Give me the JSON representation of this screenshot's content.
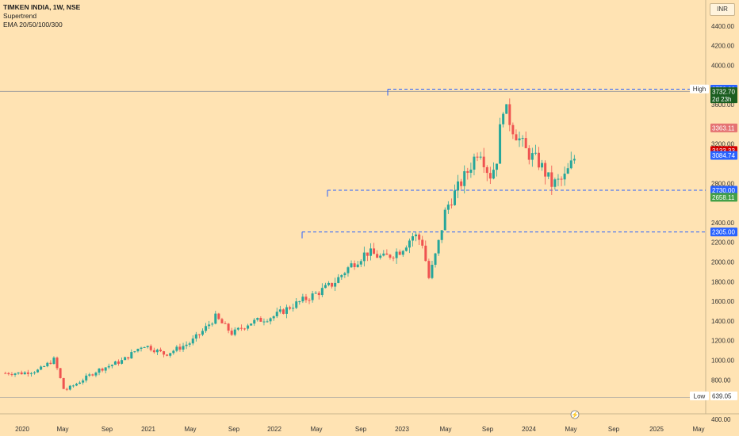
{
  "header": {
    "symbol": "TIMKEN INDIA, 1W, NSE",
    "indicator1": "Supertrend",
    "indicator2": "EMA 20/50/100/300",
    "currency": "INR"
  },
  "colors": {
    "background": "#ffe3b3",
    "up": "#26a69a",
    "down": "#ef5350",
    "level_line": "#2962ff"
  },
  "chart_data": {
    "type": "candlestick",
    "x_ticks": [
      "2020",
      "May",
      "Sep",
      "2021",
      "May",
      "Sep",
      "2022",
      "May",
      "Sep",
      "2023",
      "May",
      "Sep",
      "2024",
      "May",
      "Sep",
      "2025",
      "May"
    ],
    "y_ticks": [
      "400.00",
      "800.00",
      "1000.00",
      "1200.00",
      "1400.00",
      "1600.00",
      "1800.00",
      "2000.00",
      "2200.00",
      "2400.00",
      "2800.00",
      "3200.00",
      "3600.00",
      "4000.00",
      "4200.00",
      "4400.00"
    ],
    "ylim": [
      400,
      4600
    ],
    "price_path": [
      [
        2020.0,
        870
      ],
      [
        2020.1,
        900
      ],
      [
        2020.19,
        1010
      ],
      [
        2020.25,
        690
      ],
      [
        2020.32,
        760
      ],
      [
        2020.45,
        900
      ],
      [
        2020.6,
        1000
      ],
      [
        2020.72,
        1160
      ],
      [
        2020.85,
        1060
      ],
      [
        2021.0,
        1180
      ],
      [
        2021.07,
        1290
      ],
      [
        2021.15,
        1440
      ],
      [
        2021.25,
        1270
      ],
      [
        2021.35,
        1380
      ],
      [
        2021.5,
        1450
      ],
      [
        2021.6,
        1550
      ],
      [
        2021.75,
        1680
      ],
      [
        2021.85,
        1780
      ],
      [
        2021.95,
        1960
      ],
      [
        2022.05,
        2100
      ],
      [
        2022.15,
        2040
      ],
      [
        2022.25,
        2120
      ],
      [
        2022.33,
        2280
      ],
      [
        2022.38,
        2200
      ],
      [
        2022.42,
        1830
      ],
      [
        2022.47,
        2140
      ],
      [
        2022.52,
        2540
      ],
      [
        2022.58,
        2720
      ],
      [
        2022.65,
        2920
      ],
      [
        2022.72,
        3170
      ],
      [
        2022.78,
        2870
      ],
      [
        2022.82,
        3010
      ],
      [
        2022.86,
        3600
      ],
      [
        2022.92,
        3360
      ],
      [
        2023.0,
        3120
      ],
      [
        2023.08,
        3000
      ],
      [
        2023.15,
        2790
      ],
      [
        2023.22,
        2840
      ],
      [
        2023.32,
        3170
      ],
      [
        2023.42,
        3350
      ],
      [
        2023.5,
        3270
      ],
      [
        2023.58,
        3210
      ],
      [
        2023.66,
        3140
      ],
      [
        2023.75,
        2960
      ],
      [
        2023.85,
        2910
      ],
      [
        2023.95,
        3150
      ],
      [
        2024.03,
        3300
      ],
      [
        2024.1,
        3180
      ],
      [
        2024.14,
        2860
      ],
      [
        2024.2,
        2660
      ],
      [
        2024.26,
        2870
      ],
      [
        2024.32,
        3000
      ],
      [
        2024.36,
        3320
      ],
      [
        2024.4,
        3732.7
      ]
    ],
    "levels": [
      {
        "value": 3758.0,
        "label": "3758.00",
        "color": "#2962ff"
      },
      {
        "value": 2730.0,
        "label": "2730.00",
        "color": "#2962ff"
      },
      {
        "value": 2305.0,
        "label": "2305.00",
        "color": "#2962ff"
      }
    ],
    "badges": [
      {
        "value": 3760.0,
        "label": "3760.00",
        "bg": "#ffffff",
        "fg": "#333333",
        "tag": "High"
      },
      {
        "value": 3758.0,
        "label": "3758.00",
        "bg": "#2962ff",
        "fg": "#ffffff"
      },
      {
        "value": 3732.7,
        "label": "3732.70",
        "sub": "2d 23h",
        "bg": "#1b5e20",
        "fg": "#ffffff"
      },
      {
        "value": 3363.11,
        "label": "3363.11",
        "bg": "#e57373",
        "fg": "#ffffff"
      },
      {
        "value": 3133.33,
        "label": "3133.33",
        "bg": "#d50000",
        "fg": "#ffffff"
      },
      {
        "value": 3084.74,
        "label": "3084.74",
        "bg": "#2962ff",
        "fg": "#ffffff"
      },
      {
        "value": 2730.0,
        "label": "2730.00",
        "bg": "#2962ff",
        "fg": "#ffffff"
      },
      {
        "value": 2658.11,
        "label": "2658.11",
        "bg": "#43a047",
        "fg": "#ffffff"
      },
      {
        "value": 2305.0,
        "label": "2305.00",
        "bg": "#2962ff",
        "fg": "#ffffff"
      },
      {
        "value": 639.05,
        "label": "639.05",
        "bg": "#ffffff",
        "fg": "#333333",
        "tag": "Low"
      }
    ]
  }
}
